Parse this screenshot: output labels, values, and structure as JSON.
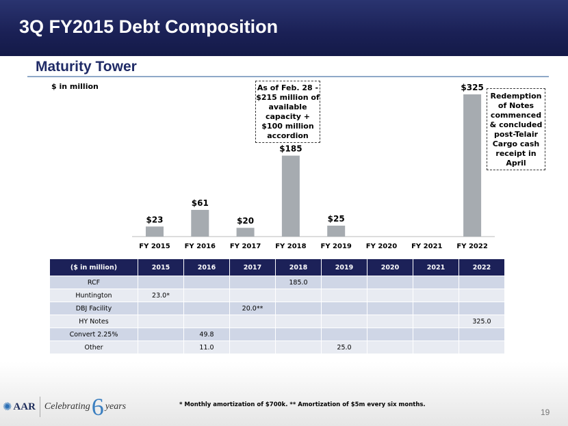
{
  "header": {
    "title": "3Q FY2015 Debt Composition"
  },
  "section": {
    "title": "Maturity Tower"
  },
  "chart_data": {
    "type": "bar",
    "ylabel": "$ in million",
    "categories": [
      "FY 2015",
      "FY 2016",
      "FY 2017",
      "FY 2018",
      "FY 2019",
      "FY 2020",
      "FY 2021",
      "FY 2022"
    ],
    "values": [
      23,
      61,
      20,
      185,
      25,
      0,
      0,
      325
    ],
    "data_labels": [
      "$23",
      "$61",
      "$20",
      "$185",
      "$25",
      "",
      "",
      "$325"
    ],
    "bar_color": "#a6abb0",
    "annotations": [
      "As of Feb. 28 - $215 million of available capacity + $100 million accordion",
      "Redemption of Notes commenced & concluded post-Telair Cargo cash receipt in April"
    ]
  },
  "table": {
    "headers": [
      "($ in million)",
      "2015",
      "2016",
      "2017",
      "2018",
      "2019",
      "2020",
      "2021",
      "2022"
    ],
    "rows": [
      [
        "RCF",
        "",
        "",
        "",
        "185.0",
        "",
        "",
        "",
        ""
      ],
      [
        "Huntington",
        "23.0*",
        "",
        "",
        "",
        "",
        "",
        "",
        ""
      ],
      [
        "DBJ Facility",
        "",
        "",
        "20.0**",
        "",
        "",
        "",
        "",
        ""
      ],
      [
        "HY Notes",
        "",
        "",
        "",
        "",
        "",
        "",
        "",
        "325.0"
      ],
      [
        "Convert 2.25%",
        "",
        "49.8",
        "",
        "",
        "",
        "",
        "",
        ""
      ],
      [
        "Other",
        "",
        "11.0",
        "",
        "",
        "25.0",
        "",
        "",
        ""
      ]
    ]
  },
  "footer": {
    "logo_brand": "AAR",
    "logo_text": "Celebrating",
    "logo_six": "6",
    "logo_years": "years",
    "footnote": "* Monthly amortization of $700k.  ** Amortization of $5m every six months.",
    "page": "19"
  }
}
